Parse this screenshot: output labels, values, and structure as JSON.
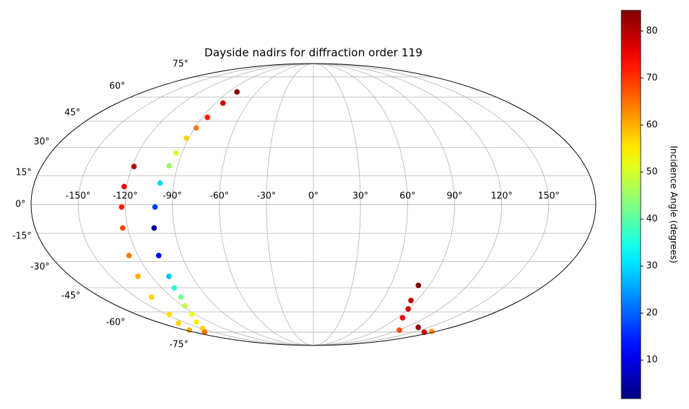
{
  "chart_data": {
    "type": "scatter",
    "projection": "mollweide",
    "title": "Dayside nadirs for diffraction order 119",
    "grid": true,
    "xlim": [
      -180,
      180
    ],
    "ylim": [
      -90,
      90
    ],
    "xticks": [
      {
        "value": -150,
        "label": "-150°"
      },
      {
        "value": -120,
        "label": "-120°"
      },
      {
        "value": -90,
        "label": "-90°"
      },
      {
        "value": -60,
        "label": "-60°"
      },
      {
        "value": -30,
        "label": "-30°"
      },
      {
        "value": 0,
        "label": "0°"
      },
      {
        "value": 30,
        "label": "30°"
      },
      {
        "value": 60,
        "label": "60°"
      },
      {
        "value": 90,
        "label": "90°"
      },
      {
        "value": 120,
        "label": "120°"
      },
      {
        "value": 150,
        "label": "150°"
      }
    ],
    "yticks": [
      {
        "value": -75,
        "label": "-75°"
      },
      {
        "value": -60,
        "label": "-60°"
      },
      {
        "value": -45,
        "label": "-45°"
      },
      {
        "value": -30,
        "label": "-30°"
      },
      {
        "value": -15,
        "label": "-15°"
      },
      {
        "value": 0,
        "label": "0°"
      },
      {
        "value": 15,
        "label": "15°"
      },
      {
        "value": 30,
        "label": "30°"
      },
      {
        "value": 45,
        "label": "45°"
      },
      {
        "value": 60,
        "label": "60°"
      },
      {
        "value": 75,
        "label": "75°"
      }
    ],
    "series": [
      {
        "x": [
          -81,
          -83,
          -86,
          -89,
          -91.7,
          -94,
          -95.6,
          -98.9,
          -101,
          -103,
          -105.8,
          -107,
          -110,
          -112,
          -118,
          -123.5,
          -135,
          -147.6,
          -164,
          -118.8,
          -121.6,
          -122.3,
          -123.3,
          -126.1,
          -130,
          -136.8,
          -146.7,
          -160,
          -174.6,
          81.7,
          84.9,
          90,
          95.5,
          121,
          136,
          167,
          174
        ],
        "y": [
          63.5,
          56,
          47.2,
          41,
          35.2,
          27,
          20.2,
          11.1,
          -1.3,
          -12.2,
          -26.8,
          -38.3,
          -45,
          -50.5,
          -56,
          -61.6,
          -67,
          -71.8,
          -75,
          19.8,
          9.3,
          -1.3,
          -12.2,
          -26.8,
          -38.3,
          -50.5,
          -61.6,
          -68,
          -73.3,
          -43.5,
          -52.6,
          -58,
          -64,
          -73.3,
          -71,
          -75,
          -74.4
        ],
        "c": [
          84,
          78,
          72,
          64,
          57,
          50,
          45,
          30,
          17,
          5,
          12,
          28,
          36,
          42,
          48,
          52,
          55,
          57,
          65,
          80,
          75,
          72,
          68,
          64,
          60,
          57,
          56,
          57,
          60,
          84,
          80,
          77,
          75,
          68,
          83,
          78,
          62
        ]
      }
    ],
    "colorbar": {
      "label": "Incidence Angle (degrees)",
      "colormap": "jet",
      "lim": [
        1.8,
        84.4
      ],
      "ticks": [
        10,
        20,
        30,
        40,
        50,
        60,
        70,
        80
      ]
    }
  }
}
